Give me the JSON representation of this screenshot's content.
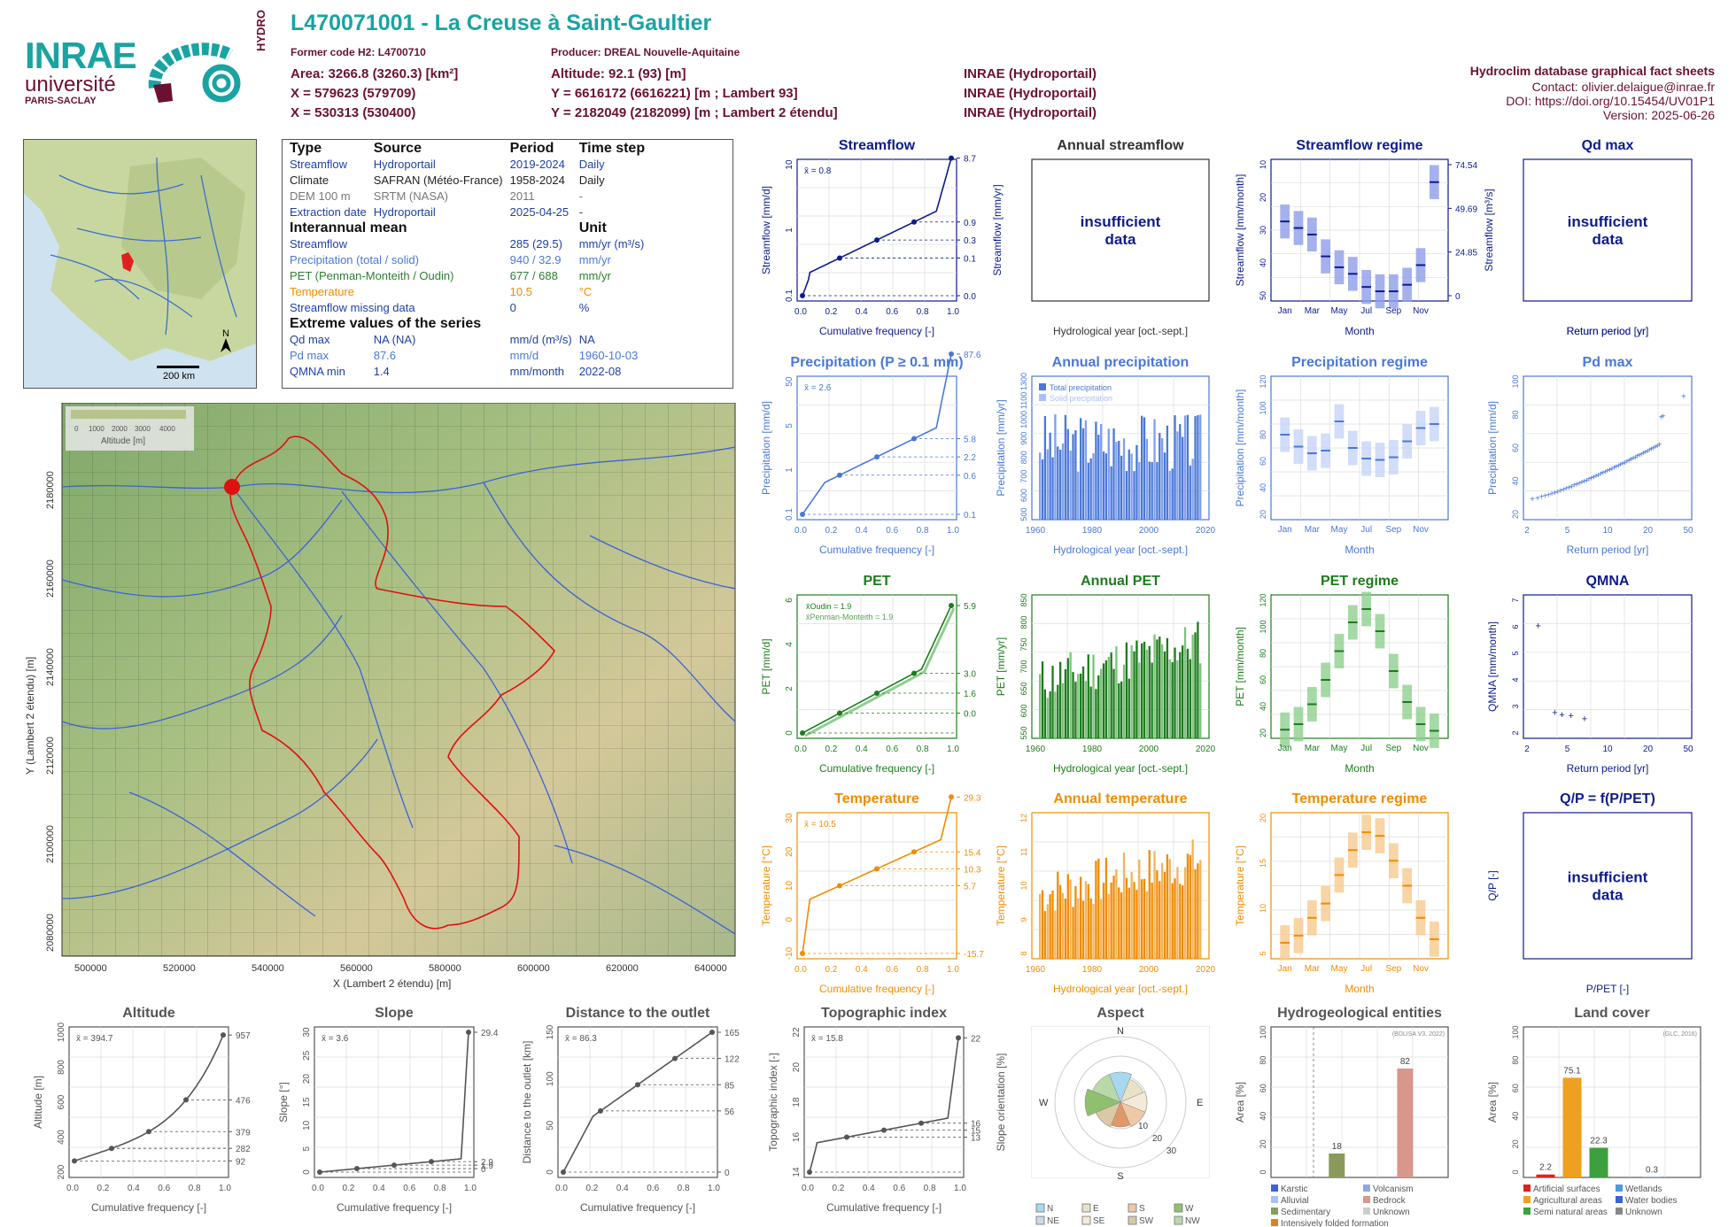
{
  "header": {
    "station_title": "L470071001 - La Creuse à Saint-Gaultier",
    "former_code": "Former code H2: L4700710",
    "producer": "Producer: DREAL Nouvelle-Aquitaine",
    "area": "Area: 3266.8 (3260.3) [km²]",
    "altitude": "Altitude: 92.1 (93) [m]",
    "x93": "X = 579623 (579709)",
    "y93": "Y = 6616172 (6616221) [m ; Lambert 93]",
    "x2": "X = 530313 (530400)",
    "y2": "Y = 2182049 (2182099) [m ; Lambert 2 étendu]",
    "src1": "INRAE (Hydroportail)",
    "src2": "INRAE (Hydroportail)",
    "src3": "INRAE (Hydroportail)",
    "db_title": "Hydroclim database graphical fact sheets",
    "contact": "Contact: olivier.delaigue@inrae.fr",
    "doi": "DOI: https://doi.org/10.15454/UV01P1",
    "version": "Version: 2025-06-26"
  },
  "logos": {
    "inrae": "INRAE",
    "universite": "université",
    "paris_saclay": "PARIS-SACLAY",
    "hydro": "HYDRO"
  },
  "minimap": {
    "scale_label": "200 km",
    "north": "N"
  },
  "info_table": {
    "head": [
      "Type",
      "Source",
      "Period",
      "Time step"
    ],
    "rows": [
      {
        "type": "Streamflow",
        "source": "Hydroportail",
        "period": "2019-2024",
        "step": "Daily",
        "color": "#1f3fa6"
      },
      {
        "type": "Climate",
        "source": "SAFRAN (Météo-France)",
        "period": "1958-2024",
        "step": "Daily",
        "color": "#222222"
      },
      {
        "type": "DEM 100 m",
        "source": "SRTM (NASA)",
        "period": "2011",
        "step": "-",
        "color": "#777777"
      },
      {
        "type": "Extraction date",
        "source": "Hydroportail",
        "period": "2025-04-25",
        "step": "-",
        "color": "#1f3fa6"
      }
    ],
    "interannual_title": "Interannual mean",
    "unit_title": "Unit",
    "means": [
      {
        "label": "Streamflow",
        "value": "285 (29.5)",
        "unit": "mm/yr (m³/s)",
        "color": "#1f3fa6"
      },
      {
        "label": "Precipitation (total / solid)",
        "value": "940 / 32.9",
        "unit": "mm/yr",
        "color": "#4a78d8"
      },
      {
        "label": "PET (Penman-Monteith / Oudin)",
        "value": "677 / 688",
        "unit": "mm/yr",
        "color": "#2e7d32"
      },
      {
        "label": "Temperature",
        "value": "10.5",
        "unit": "°C",
        "color": "#f08c00"
      },
      {
        "label": "Streamflow missing data",
        "value": "0",
        "unit": "%",
        "color": "#1f3fa6"
      }
    ],
    "extreme_title": "Extreme values of the series",
    "extremes": [
      {
        "label": "Qd max",
        "value": "NA (NA)",
        "unit": "mm/d (m³/s)",
        "date": "NA",
        "color": "#1f3fa6"
      },
      {
        "label": "Pd max",
        "value": "87.6",
        "unit": "mm/d",
        "date": "1960-10-03",
        "color": "#4a78d8"
      },
      {
        "label": "QMNA min",
        "value": "1.4",
        "unit": "mm/month",
        "date": "2022-08",
        "color": "#1f3fa6"
      }
    ]
  },
  "bigmap": {
    "legend_ticks": [
      "0",
      "1000",
      "2000",
      "3000",
      "4000"
    ],
    "legend_label": "Altitude [m]",
    "xlabel": "X (Lambert 2 étendu) [m]",
    "ylabel": "Y (Lambert 2 étendu) [m]",
    "xticks": [
      "500000",
      "520000",
      "540000",
      "560000",
      "580000",
      "600000",
      "620000",
      "640000"
    ],
    "yticks": [
      "2080000",
      "2100000",
      "2120000",
      "2140000",
      "2160000",
      "2180000"
    ]
  },
  "panels": {
    "streamflow": {
      "title": "Streamflow",
      "ylabel": "Streamflow [mm/d]",
      "y2label": "Streamflow [mm/yr]",
      "xlabel": "Cumulative frequency [-]",
      "mean": "x̄ = 0.8",
      "right_ticks": [
        "8.7",
        "0.9",
        "0.3",
        "0.1",
        "0.0"
      ],
      "left_ticks": [
        "10",
        "1",
        "0.1"
      ]
    },
    "annual_streamflow": {
      "title": "Annual streamflow",
      "insufficient": "insufficient data",
      "xlabel": "Hydrological year [oct.-sept.]"
    },
    "streamflow_regime": {
      "title": "Streamflow regime",
      "ylabel": "Streamflow [mm/month]",
      "y2label": "Streamflow [m³/s]",
      "xlabel": "Month",
      "right_ticks": [
        "74.54",
        "49.69",
        "24.85",
        "0"
      ],
      "left_ticks": [
        "10",
        "20",
        "30",
        "40",
        "50"
      ]
    },
    "qd_max": {
      "title": "Qd max",
      "insufficient": "insufficient data",
      "xlabel": "Return period [yr]"
    },
    "precip": {
      "title": "Precipitation (P ≥ 0.1 mm)",
      "ylabel": "Precipitation [mm/d]",
      "xlabel": "Cumulative frequency [-]",
      "mean": "x̄ = 2.6",
      "right_ticks": [
        "87.6",
        "5.8",
        "2.2",
        "0.6",
        "0.1"
      ],
      "left_ticks": [
        "50",
        "5",
        "1",
        "0.1"
      ]
    },
    "annual_precip": {
      "title": "Annual precipitation",
      "ylabel": "Precipitation [mm/yr]",
      "xlabel": "Hydrological year [oct.-sept.]",
      "legend": [
        "Total precipitation",
        "Solid precipitation"
      ],
      "yticks": [
        "1300",
        "1100",
        "1000",
        "900",
        "800",
        "700",
        "600",
        "500"
      ]
    },
    "precip_regime": {
      "title": "Precipitation regime",
      "ylabel": "Precipitation [mm/month]",
      "xlabel": "Month",
      "yticks": [
        "120",
        "100",
        "80",
        "60",
        "40",
        "20"
      ]
    },
    "pd_max": {
      "title": "Pd max",
      "ylabel": "Precipitation [mm/d]",
      "xlabel": "Return period [yr]",
      "yticks": [
        "100",
        "80",
        "60",
        "40",
        "20"
      ],
      "xticks": [
        "2",
        "5",
        "10",
        "20",
        "50"
      ]
    },
    "pet": {
      "title": "PET",
      "ylabel": "PET [mm/d]",
      "xlabel": "Cumulative frequency [-]",
      "legend": [
        "x̄Oudin = 1.9",
        "x̄Penman-Monteith = 1.9"
      ],
      "right_ticks": [
        "5.9",
        "3.0",
        "1.6",
        "0.0"
      ],
      "left_ticks": [
        "6",
        "4",
        "2",
        "0"
      ]
    },
    "annual_pet": {
      "title": "Annual PET",
      "ylabel": "PET [mm/yr]",
      "xlabel": "Hydrological year [oct.-sept.]",
      "yticks": [
        "850",
        "800",
        "750",
        "700",
        "650",
        "600",
        "550"
      ]
    },
    "pet_regime": {
      "title": "PET regime",
      "ylabel": "PET [mm/month]",
      "xlabel": "Month",
      "yticks": [
        "120",
        "100",
        "80",
        "60",
        "40",
        "20"
      ]
    },
    "qmna": {
      "title": "QMNA",
      "ylabel": "QMNA [mm/month]",
      "xlabel": "Return period [yr]",
      "yticks": [
        "7",
        "6",
        "5",
        "4",
        "3",
        "2"
      ],
      "xticks": [
        "2",
        "5",
        "10",
        "20",
        "50"
      ]
    },
    "temperature": {
      "title": "Temperature",
      "ylabel": "Temperature [°C]",
      "xlabel": "Cumulative frequency [-]",
      "mean": "x̄ = 10.5",
      "right_ticks": [
        "29.3",
        "15.4",
        "10.3",
        "5.7",
        "-15.7"
      ],
      "left_ticks": [
        "30",
        "20",
        "10",
        "0",
        "-10"
      ]
    },
    "annual_temp": {
      "title": "Annual temperature",
      "ylabel": "Temperature [°C]",
      "xlabel": "Hydrological year [oct.-sept.]",
      "yticks": [
        "12",
        "11",
        "10",
        "9",
        "8"
      ]
    },
    "temp_regime": {
      "title": "Temperature regime",
      "ylabel": "Temperature [°C]",
      "xlabel": "Month",
      "yticks": [
        "20",
        "15",
        "10",
        "5"
      ]
    },
    "qp": {
      "title": "Q/P = f(P/PET)",
      "insufficient": "insufficient data",
      "ylabel": "Q/P [-]",
      "xlabel": "P/PET [-]"
    },
    "altitude": {
      "title": "Altitude",
      "ylabel": "Altitude [m]",
      "xlabel": "Cumulative frequency [-]",
      "mean": "x̄ = 394.7",
      "right_ticks": [
        "957",
        "476",
        "379",
        "282",
        "92"
      ],
      "left_ticks": [
        "1000",
        "800",
        "600",
        "400",
        "200"
      ]
    },
    "slope": {
      "title": "Slope",
      "ylabel": "Slope [°]",
      "xlabel": "Cumulative frequency [-]",
      "mean": "x̄ = 3.6",
      "right_ticks": [
        "29.4",
        "2.9",
        "1.9",
        "0"
      ],
      "left_ticks": [
        "30",
        "25",
        "20",
        "15",
        "10",
        "5",
        "0"
      ]
    },
    "distance": {
      "title": "Distance to the outlet",
      "ylabel": "Distance to the outlet [km]",
      "xlabel": "Cumulative frequency [-]",
      "mean": "x̄ = 86.3",
      "right_ticks": [
        "165",
        "122",
        "85",
        "56",
        "0"
      ],
      "left_ticks": [
        "150",
        "100",
        "50",
        "0"
      ]
    },
    "topo": {
      "title": "Topographic index",
      "ylabel": "Topographic index [-]",
      "xlabel": "Cumulative frequency [-]",
      "mean": "x̄ = 15.8",
      "right_ticks": [
        "22",
        "16",
        "15",
        "13"
      ],
      "left_ticks": [
        "22",
        "20",
        "18",
        "16",
        "14"
      ]
    },
    "aspect": {
      "title": "Aspect",
      "ylabel": "Slope orientation [%]",
      "dirs": [
        "N",
        "E",
        "S",
        "W"
      ],
      "rings": [
        "10",
        "20",
        "30"
      ],
      "legend": [
        "N",
        "E",
        "S",
        "W",
        "NE",
        "SE",
        "SW",
        "NW"
      ]
    },
    "hydrogeo": {
      "title": "Hydrogeological entities",
      "ylabel": "Area [%]",
      "note": "(BDLISA V3, 2022)",
      "yticks": [
        "100",
        "80",
        "60",
        "40",
        "20",
        "0"
      ],
      "legend": [
        "Karstic",
        "Volcanism",
        "Alluvial",
        "Bedrock",
        "Sedimentary",
        "Unknown",
        "Intensively folded formation"
      ]
    },
    "landcover": {
      "title": "Land cover",
      "ylabel": "Area [%]",
      "note": "(GLC, 2016)",
      "yticks": [
        "100",
        "80",
        "60",
        "40",
        "20",
        "0"
      ],
      "legend": [
        "Artificial surfaces",
        "Wetlands",
        "Agricultural areas",
        "Water bodies",
        "Semi natural areas",
        "Unknown"
      ]
    }
  },
  "months_short": [
    "Jan",
    "Mar",
    "May",
    "Jul",
    "Sep",
    "Nov"
  ],
  "freq_ticks": [
    "0.0",
    "0.2",
    "0.4",
    "0.6",
    "0.8",
    "1.0"
  ],
  "year_ticks": [
    "1960",
    "1980",
    "2000",
    "2020"
  ],
  "chart_data": [
    {
      "type": "bar",
      "name": "Streamflow regime",
      "categories": [
        "Jan",
        "Feb",
        "Mar",
        "Apr",
        "May",
        "Jun",
        "Jul",
        "Aug",
        "Sep",
        "Oct",
        "Nov",
        "Dec"
      ],
      "values": [
        34,
        31,
        28,
        18,
        13,
        10,
        4,
        2,
        2,
        5,
        14,
        52
      ],
      "ylabel": "Streamflow [mm/month]"
    },
    {
      "type": "bar",
      "name": "Precipitation regime",
      "categories": [
        "Jan",
        "Feb",
        "Mar",
        "Apr",
        "May",
        "Jun",
        "Jul",
        "Aug",
        "Sep",
        "Oct",
        "Nov",
        "Dec"
      ],
      "values": [
        80,
        71,
        66,
        68,
        90,
        70,
        62,
        61,
        63,
        75,
        85,
        88
      ],
      "ylabel": "Precipitation [mm/month]"
    },
    {
      "type": "bar",
      "name": "PET regime",
      "categories": [
        "Jan",
        "Feb",
        "Mar",
        "Apr",
        "May",
        "Jun",
        "Jul",
        "Aug",
        "Sep",
        "Oct",
        "Nov",
        "Dec"
      ],
      "values": [
        13,
        18,
        36,
        58,
        84,
        110,
        122,
        102,
        66,
        38,
        18,
        12
      ],
      "ylabel": "PET [mm/month]"
    },
    {
      "type": "bar",
      "name": "Temperature regime",
      "categories": [
        "Jan",
        "Feb",
        "Mar",
        "Apr",
        "May",
        "Jun",
        "Jul",
        "Aug",
        "Sep",
        "Oct",
        "Nov",
        "Dec"
      ],
      "values": [
        3.5,
        4.5,
        7,
        9,
        13,
        16.5,
        19,
        18.5,
        15,
        11.5,
        7,
        4
      ],
      "ylabel": "Temperature [°C]"
    },
    {
      "type": "bar",
      "name": "Hydrogeological entities",
      "categories": [
        "Sedimentary",
        "Bedrock"
      ],
      "values": [
        18,
        82
      ],
      "ylabel": "Area [%]",
      "ylim": [
        0,
        100
      ]
    },
    {
      "type": "bar",
      "name": "Land cover",
      "categories": [
        "Artificial surfaces",
        "Agricultural areas",
        "Semi natural areas",
        "Water bodies"
      ],
      "values": [
        2.2,
        75.1,
        22.3,
        0.3
      ],
      "ylabel": "Area [%]",
      "ylim": [
        0,
        100
      ]
    },
    {
      "type": "scatter",
      "name": "QMNA",
      "x": [
        1.2,
        2,
        2.5,
        3.3,
        5
      ],
      "y": [
        6.2,
        1.7,
        1.6,
        1.55,
        1.4
      ],
      "xlabel": "Return period [yr]",
      "ylabel": "QMNA [mm/month]"
    }
  ]
}
